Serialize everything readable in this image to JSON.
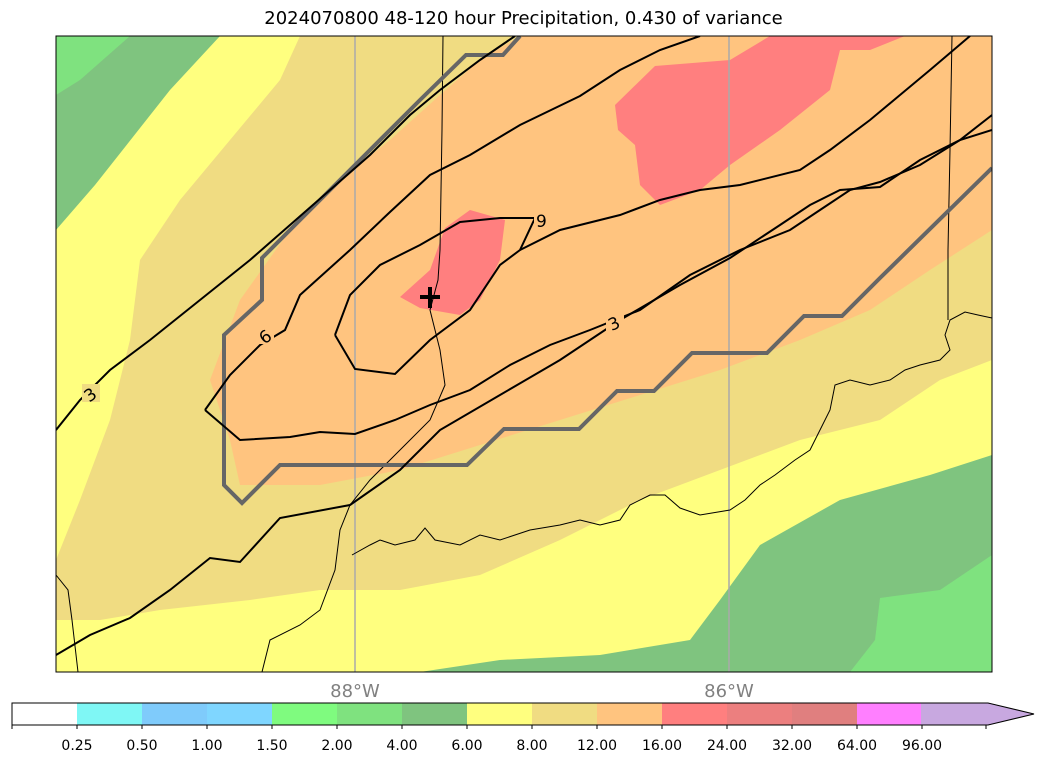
{
  "title": "2024070800 48-120 hour Precipitation, 0.430 of variance",
  "map": {
    "longitude_labels": [
      "88°W",
      "86°W"
    ],
    "contour_labels": [
      "3",
      "6",
      "9",
      "3"
    ],
    "marker": "plus-icon"
  },
  "colorbar": {
    "ticks": [
      "0.25",
      "0.50",
      "1.00",
      "1.50",
      "2.00",
      "4.00",
      "6.00",
      "8.00",
      "12.00",
      "16.00",
      "24.00",
      "32.00",
      "64.00",
      "96.00"
    ],
    "colors": [
      "#ffffff",
      "#7ff7f5",
      "#7fcbfb",
      "#7fd6ff",
      "#7ffb7f",
      "#7fe27f",
      "#7fc47f",
      "#ffff7f",
      "#f0dc82",
      "#ffc47f",
      "#ff7f7f",
      "#ec7f7f",
      "#e07f7f",
      "#ff7fff",
      "#c8a8e0"
    ],
    "extend": "max"
  },
  "colors": {
    "dark_green": "#7fc47f",
    "green": "#7fe27f",
    "yellow": "#ffff7f",
    "tan": "#f0dc82",
    "orange": "#ffc47f",
    "red": "#ff7f7f",
    "contour": "#000000",
    "state_border": "#666666",
    "meridian": "#aaaaaa"
  }
}
